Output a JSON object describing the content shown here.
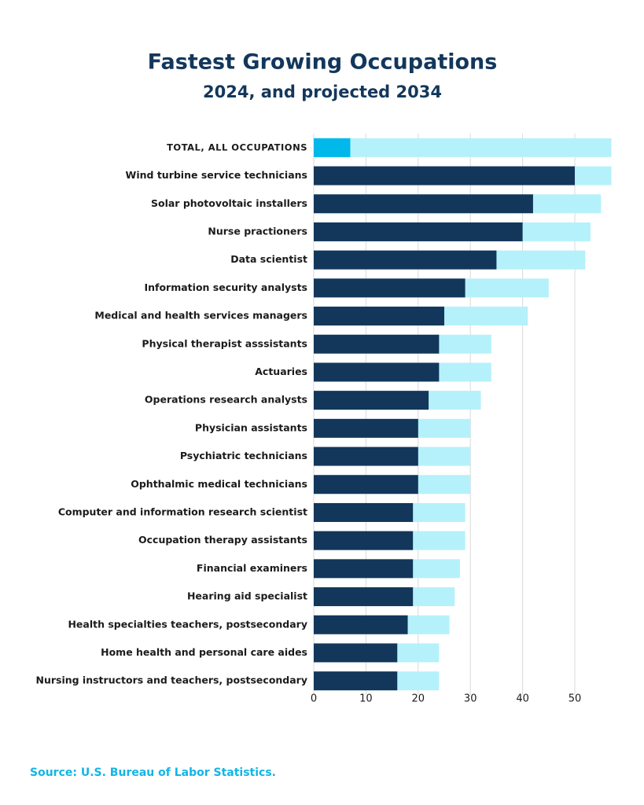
{
  "chart_data": {
    "type": "bar",
    "orientation": "horizontal",
    "overlap": true,
    "title": "Fastest Growing Occupations",
    "subtitle": "2024, and projected 2034",
    "source": "Source: U.S. Bureau of Labor Statistics.",
    "categories": [
      "TOTAL, ALL OCCUPATIONS",
      "Wind turbine service technicians",
      "Solar photovoltaic installers",
      "Nurse practioners",
      "Data scientist",
      "Information security analysts",
      "Medical and health services managers",
      "Physical therapist asssistants",
      "Actuaries",
      "Operations research analysts",
      "Physician assistants",
      "Psychiatric technicians",
      "Ophthalmic medical technicians",
      "Computer and information research scientist",
      "Occupation therapy assistants",
      "Financial examiners",
      "Hearing aid specialist",
      "Health specialties teachers, postsecondary",
      "Home health and personal care aides",
      "Nursing instructors and teachers, postsecondary"
    ],
    "series": [
      {
        "color": "#b5f1fb",
        "values": [
          57,
          57,
          55,
          53,
          52,
          45,
          41,
          34,
          34,
          32,
          30,
          30,
          30,
          29,
          29,
          28,
          27,
          26,
          24,
          24
        ]
      },
      {
        "color": "#13375b",
        "highlight_color": "#00b8ea",
        "values": [
          7,
          50,
          42,
          40,
          35,
          29,
          25,
          24,
          24,
          22,
          20,
          20,
          20,
          19,
          19,
          19,
          19,
          18,
          16,
          16
        ]
      }
    ],
    "xlim": [
      0,
      57
    ],
    "xticks": [
      0,
      10,
      20,
      30,
      40,
      50
    ],
    "grid": true
  }
}
